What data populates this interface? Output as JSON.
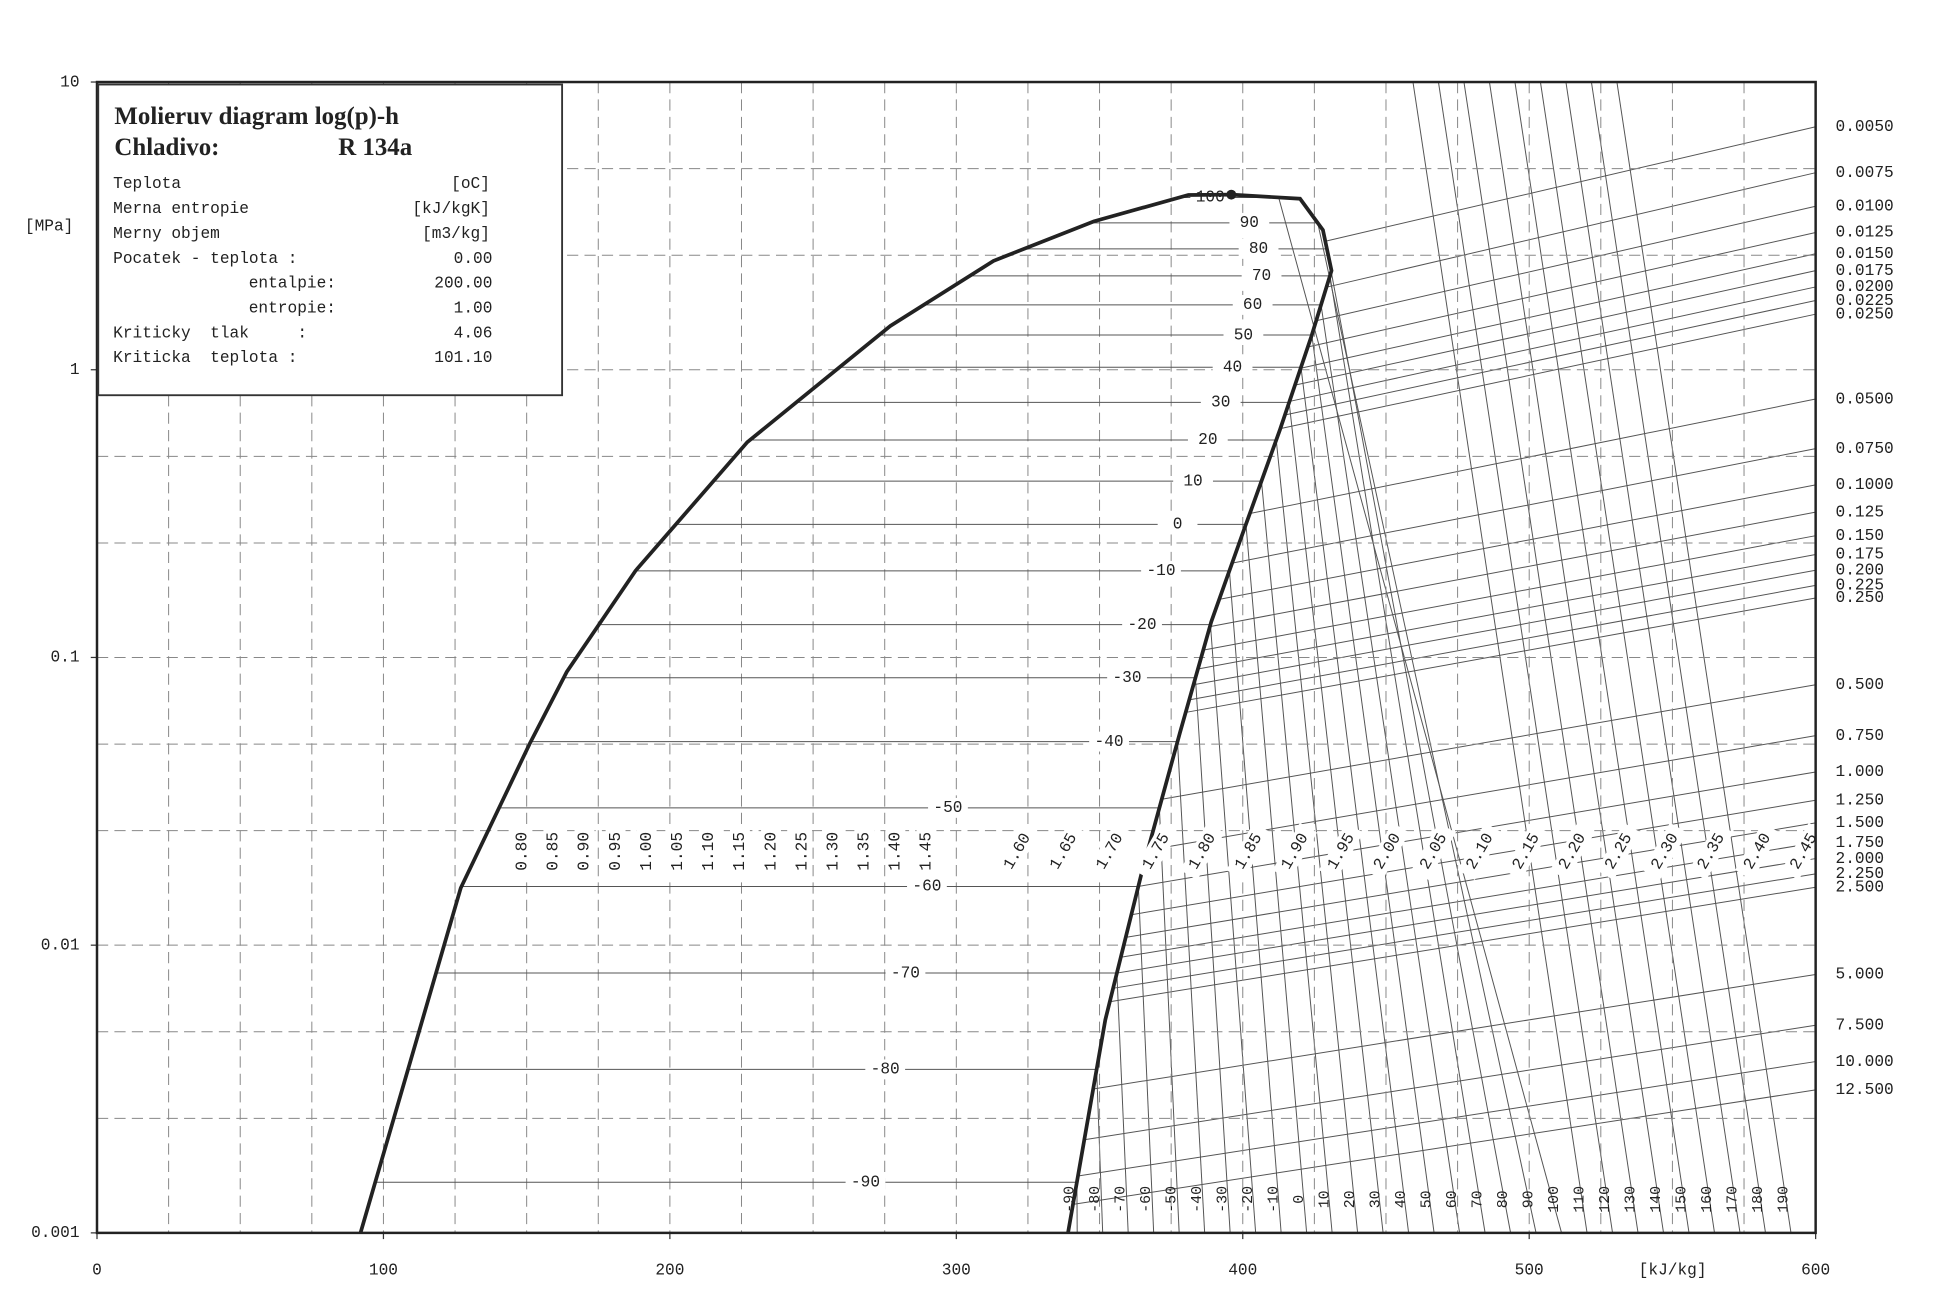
{
  "chart_data": {
    "type": "mollier",
    "title": "Molieruv diagram log(p)-h",
    "refrigerant_label": "Chladivo:",
    "refrigerant": "R 134a",
    "info_rows": [
      [
        "Teplota",
        "[oC]"
      ],
      [
        "Merna entropie",
        "[kJ/kgK]"
      ],
      [
        "Merny objem",
        "[m3/kg]"
      ],
      [
        "Pocatek - teplota :",
        "0.00"
      ],
      [
        "entalpie:",
        "200.00"
      ],
      [
        "entropie:",
        "1.00"
      ],
      [
        "Kriticky  tlak     :",
        "4.06"
      ],
      [
        "Kriticka  teplota :",
        "101.10"
      ]
    ],
    "xlabel": "[kJ/kg]",
    "ylabel": "[MPa]",
    "xlim": [
      0,
      600
    ],
    "xticks": [
      0,
      100,
      200,
      300,
      400,
      500,
      600
    ],
    "xgrid": [
      25,
      50,
      75,
      100,
      125,
      150,
      175,
      200,
      225,
      250,
      275,
      300,
      325,
      350,
      375,
      400,
      425,
      450,
      475,
      500,
      525,
      550,
      575
    ],
    "ylim": [
      0.001,
      10
    ],
    "yscale": "log",
    "yticks": [
      0.001,
      0.01,
      0.1,
      1,
      10
    ],
    "ygrid": [
      0.0025,
      0.005,
      0.025,
      0.05,
      0.25,
      0.5,
      2.5,
      5
    ],
    "series": [
      {
        "color": "#222222",
        "x": [
          92,
          127,
          151,
          164,
          188,
          227,
          277,
          313,
          348,
          381,
          396
        ],
        "y": [
          0.001,
          0.0158,
          0.05,
          0.089,
          0.2,
          0.56,
          1.42,
          2.39,
          3.28,
          4.05,
          4.06
        ]
      },
      {
        "color": "#222222",
        "x": [
          396,
          420,
          428,
          431,
          424,
          413,
          400,
          389,
          378,
          365,
          352,
          339
        ],
        "y": [
          4.06,
          3.93,
          3.06,
          2.21,
          1.31,
          0.62,
          0.27,
          0.133,
          0.0545,
          0.0183,
          0.0055,
          0.001
        ]
      }
    ],
    "critical_point": {
      "x": 396,
      "y": 4.06
    },
    "line_color": "#444444",
    "isotherms": {
      "labels": [
        100,
        90,
        80,
        70,
        60,
        50,
        40,
        30,
        20,
        10,
        0,
        -10,
        -20,
        -30,
        -40,
        -50,
        -60,
        -70,
        -80,
        -90
      ],
      "pressures": [
        3.97,
        3.24,
        2.63,
        2.12,
        1.68,
        1.32,
        1.02,
        0.77,
        0.57,
        0.41,
        0.29,
        0.2,
        0.13,
        0.085,
        0.051,
        0.03,
        0.016,
        0.008,
        0.0037,
        0.0015
      ]
    },
    "superheat_isotherms": {
      "labels": [
        -90,
        -80,
        -70,
        -60,
        -50,
        -40,
        -30,
        -20,
        -10,
        0,
        10,
        20,
        30,
        40,
        50,
        60,
        70,
        80,
        90,
        100,
        110,
        120,
        130,
        140,
        150,
        160,
        170,
        180,
        190
      ],
      "h_at_pmin": [
        342.2,
        351.1,
        360.0,
        368.9,
        377.8,
        386.7,
        395.6,
        404.5,
        413.4,
        422.3,
        431.2,
        440.1,
        449.0,
        457.9,
        466.8,
        475.7,
        484.6,
        493.5,
        502.4,
        511.3,
        520.2,
        529.1,
        538.0,
        546.9,
        555.8,
        564.7,
        573.6,
        582.5,
        591.4
      ]
    },
    "isentropes": {
      "labels": [
        {
          "value": 0.8,
          "label": "0.80"
        },
        {
          "value": 0.85,
          "label": "0.85"
        },
        {
          "value": 0.9,
          "label": "0.90"
        },
        {
          "value": 0.95,
          "label": "0.95"
        },
        {
          "value": 1.0,
          "label": "1.00"
        },
        {
          "value": 1.05,
          "label": "1.05"
        },
        {
          "value": 1.1,
          "label": "1.10"
        },
        {
          "value": 1.15,
          "label": "1.15"
        },
        {
          "value": 1.2,
          "label": "1.20"
        },
        {
          "value": 1.25,
          "label": "1.25"
        },
        {
          "value": 1.3,
          "label": "1.30"
        },
        {
          "value": 1.35,
          "label": "1.35"
        },
        {
          "value": 1.4,
          "label": "1.40"
        },
        {
          "value": 1.45,
          "label": "1.45"
        },
        {
          "value": 1.6,
          "label": "1.60"
        },
        {
          "value": 1.65,
          "label": "1.65"
        },
        {
          "value": 1.7,
          "label": "1.70"
        },
        {
          "value": 1.75,
          "label": "1.75"
        },
        {
          "value": 1.8,
          "label": "1.80"
        },
        {
          "value": 1.85,
          "label": "1.85"
        },
        {
          "value": 1.9,
          "label": "1.90"
        },
        {
          "value": 1.95,
          "label": "1.95"
        },
        {
          "value": 2.0,
          "label": "2.00"
        },
        {
          "value": 2.05,
          "label": "2.05"
        },
        {
          "value": 2.1,
          "label": "2.10"
        },
        {
          "value": 2.15,
          "label": "2.15"
        },
        {
          "value": 2.2,
          "label": "2.20"
        },
        {
          "value": 2.25,
          "label": "2.25"
        },
        {
          "value": 2.3,
          "label": "2.30"
        },
        {
          "value": 2.35,
          "label": "2.35"
        },
        {
          "value": 2.4,
          "label": "2.40"
        },
        {
          "value": 2.45,
          "label": "2.45"
        }
      ]
    },
    "isochores": {
      "labels": [
        {
          "value": 0.005,
          "label": "0.0050"
        },
        {
          "value": 0.0075,
          "label": "0.0075"
        },
        {
          "value": 0.01,
          "label": "0.0100"
        },
        {
          "value": 0.0125,
          "label": "0.0125"
        },
        {
          "value": 0.015,
          "label": "0.0150"
        },
        {
          "value": 0.0175,
          "label": "0.0175"
        },
        {
          "value": 0.02,
          "label": "0.0200"
        },
        {
          "value": 0.0225,
          "label": "0.0225"
        },
        {
          "value": 0.025,
          "label": "0.0250"
        },
        {
          "value": 0.05,
          "label": "0.0500"
        },
        {
          "value": 0.075,
          "label": "0.0750"
        },
        {
          "value": 0.1,
          "label": "0.1000"
        },
        {
          "value": 0.125,
          "label": "0.125"
        },
        {
          "value": 0.15,
          "label": "0.150"
        },
        {
          "value": 0.175,
          "label": "0.175"
        },
        {
          "value": 0.2,
          "label": "0.200"
        },
        {
          "value": 0.225,
          "label": "0.225"
        },
        {
          "value": 0.25,
          "label": "0.250"
        },
        {
          "value": 0.5,
          "label": "0.500"
        },
        {
          "value": 0.75,
          "label": "0.750"
        },
        {
          "value": 1,
          "label": "1.000"
        },
        {
          "value": 1.25,
          "label": "1.250"
        },
        {
          "value": 1.5,
          "label": "1.500"
        },
        {
          "value": 1.75,
          "label": "1.750"
        },
        {
          "value": 2,
          "label": "2.000"
        },
        {
          "value": 2.25,
          "label": "2.250"
        },
        {
          "value": 2.5,
          "label": "2.500"
        },
        {
          "value": 5,
          "label": "5.000"
        },
        {
          "value": 7.5,
          "label": "7.500"
        },
        {
          "value": 10,
          "label": "10.000"
        },
        {
          "value": 12.5,
          "label": "12.500"
        }
      ],
      "pressures_at_right": [
        6.99,
        4.84,
        3.7,
        3.0,
        2.53,
        2.21,
        1.94,
        1.74,
        1.56,
        0.791,
        0.532,
        0.398,
        0.32,
        0.265,
        0.228,
        0.201,
        0.178,
        0.161,
        0.0804,
        0.0535,
        0.04,
        0.0319,
        0.0266,
        0.0227,
        0.02,
        0.0177,
        0.0159,
        0.00791,
        0.00527,
        0.00394,
        0.00314
      ]
    }
  }
}
